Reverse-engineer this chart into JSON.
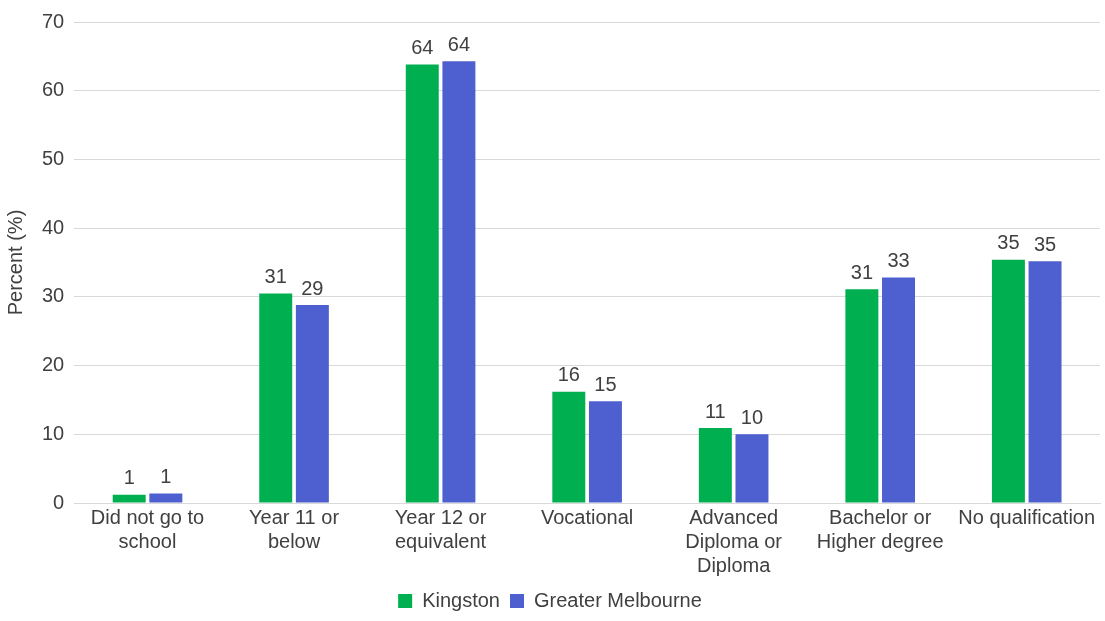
{
  "chart_data": {
    "type": "bar",
    "ylabel": "Percent (%)",
    "categories": [
      "Did not go to school",
      "Year 11 or below",
      "Year 12 or equivalent",
      "Vocational",
      "Advanced Diploma or Diploma",
      "Bachelor or Higher degree",
      "No qualification"
    ],
    "series": [
      {
        "name": "Kingston",
        "color": "#00b050",
        "values": [
          1.2,
          30.5,
          63.8,
          16.2,
          10.9,
          31.1,
          35.4
        ],
        "value_labels": [
          "1",
          "31",
          "64",
          "16",
          "11",
          "31",
          "35"
        ]
      },
      {
        "name": "Greater Melbourne",
        "color": "#4e5fcf",
        "values": [
          1.4,
          28.8,
          64.3,
          14.8,
          10.0,
          32.8,
          35.2
        ],
        "value_labels": [
          "1",
          "29",
          "64",
          "15",
          "10",
          "33",
          "35"
        ]
      }
    ],
    "ylim": [
      0,
      70
    ],
    "yticks": [
      0,
      10,
      20,
      30,
      40,
      50,
      60,
      70
    ],
    "grid": "y",
    "legend": "bottom"
  }
}
